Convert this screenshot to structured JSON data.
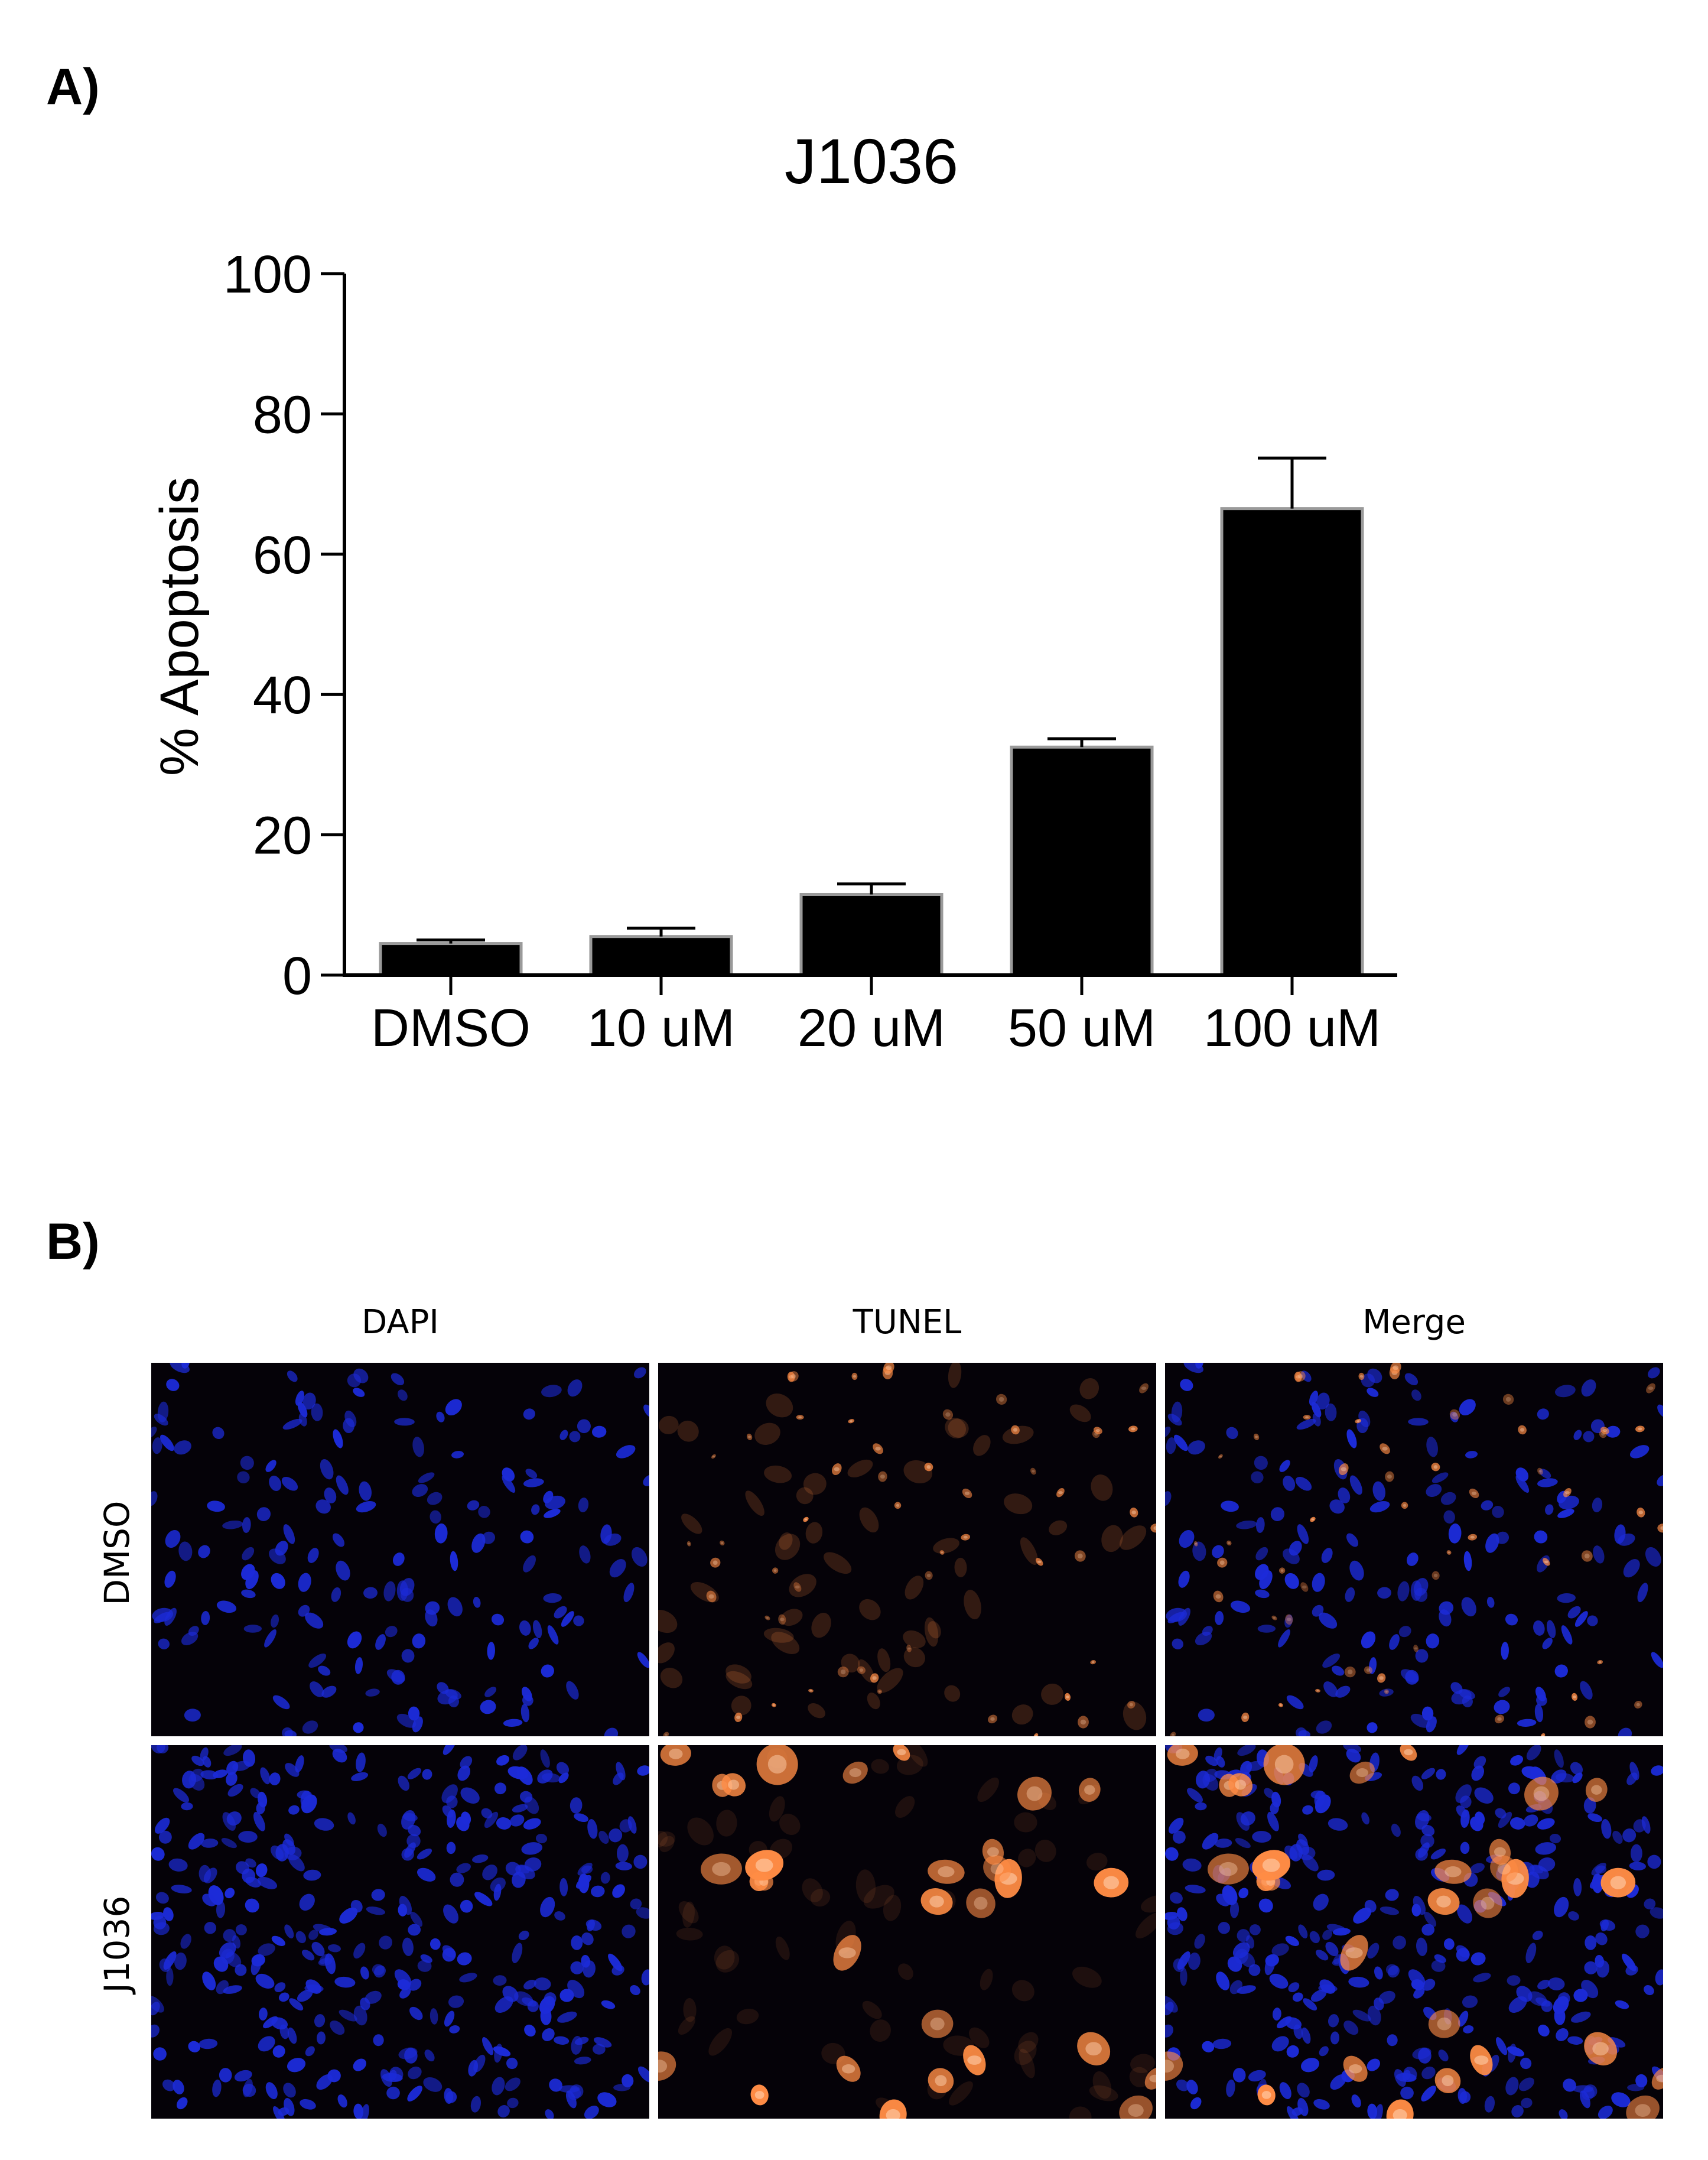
{
  "figure": {
    "panel_a_label": "A)",
    "panel_b_label": "B)"
  },
  "chart_data": {
    "type": "bar",
    "title": "J1036",
    "xlabel": "",
    "ylabel": "% Apoptosis",
    "ylim": [
      0,
      100
    ],
    "yticks": [
      0,
      20,
      40,
      60,
      80,
      100
    ],
    "grid": false,
    "categories": [
      "DMSO",
      "10 uM",
      "20 uM",
      "50 uM",
      "100 uM"
    ],
    "values": [
      4.5,
      5.5,
      11.5,
      32.5,
      66.5
    ],
    "error": [
      0.5,
      1.2,
      1.5,
      1.2,
      7.2
    ],
    "bar_color": "#000000"
  },
  "microscopy": {
    "columns": [
      "DAPI",
      "TUNEL",
      "Merge"
    ],
    "rows": [
      "DMSO",
      "J1036"
    ],
    "colors": {
      "background": "#050208",
      "dapi": "#1c2bd8",
      "tunel": "#ff8c45"
    }
  }
}
